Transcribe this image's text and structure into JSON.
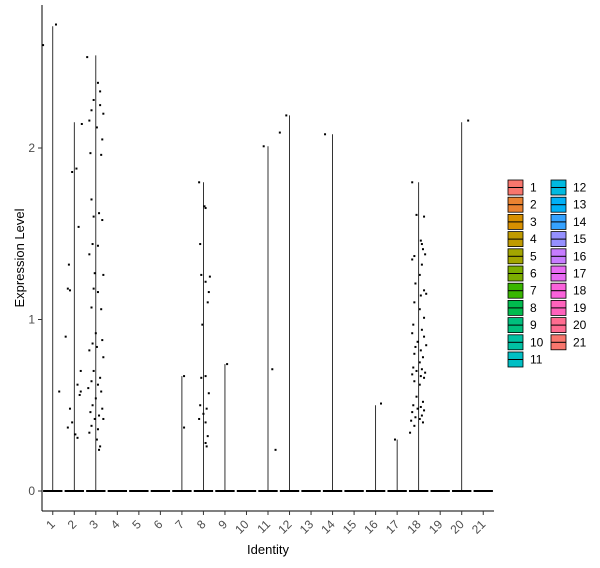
{
  "chart_data": {
    "type": "violin",
    "xlabel": "Identity",
    "ylabel": "Expression Level",
    "categories": [
      "1",
      "2",
      "3",
      "4",
      "5",
      "6",
      "7",
      "8",
      "9",
      "10",
      "11",
      "12",
      "13",
      "14",
      "15",
      "16",
      "17",
      "18",
      "19",
      "20",
      "21"
    ],
    "ylim": [
      -0.12,
      2.85
    ],
    "yticks": [
      0,
      1,
      2
    ],
    "grid": false,
    "legend_placement": "right",
    "legend": [
      "1",
      "2",
      "3",
      "4",
      "5",
      "6",
      "7",
      "8",
      "9",
      "10",
      "11",
      "12",
      "13",
      "14",
      "15",
      "16",
      "17",
      "18",
      "19",
      "20",
      "21"
    ],
    "colors": [
      "#F8766D",
      "#EA8331",
      "#D89000",
      "#C09B00",
      "#A3A500",
      "#7CAE00",
      "#39B600",
      "#00BB4E",
      "#00BF7D",
      "#00C1A3",
      "#00BFC4",
      "#00BAE0",
      "#00B0F6",
      "#35A2FF",
      "#9590FF",
      "#C77CFF",
      "#E76BF3",
      "#FA62DB",
      "#FF62BC",
      "#FF6C91",
      "#F8766D"
    ],
    "series": [
      {
        "name": "1",
        "max": 2.71,
        "points": [
          [
            -0.45,
            2.6
          ],
          [
            0.15,
            2.72
          ],
          [
            0.3,
            0.58
          ]
        ]
      },
      {
        "name": "2",
        "max": 2.15,
        "points": [
          [
            -0.3,
            1.18
          ],
          [
            -0.2,
            1.17
          ],
          [
            0.1,
            1.88
          ],
          [
            -0.1,
            1.86
          ],
          [
            0.2,
            1.54
          ],
          [
            0.3,
            0.7
          ],
          [
            -0.2,
            0.48
          ],
          [
            0.15,
            0.62
          ],
          [
            0.3,
            0.58
          ],
          [
            -0.4,
            0.9
          ],
          [
            -0.3,
            0.37
          ],
          [
            0.05,
            0.33
          ],
          [
            0.15,
            0.31
          ],
          [
            -0.1,
            0.4
          ],
          [
            0.35,
            2.14
          ],
          [
            -0.25,
            1.32
          ],
          [
            0.25,
            0.56
          ]
        ],
        "zero_line": true
      },
      {
        "name": "3",
        "max": 2.54,
        "points": [
          [
            -0.4,
            2.53
          ],
          [
            0.1,
            2.38
          ],
          [
            0.2,
            2.33
          ],
          [
            -0.1,
            2.28
          ],
          [
            0.2,
            2.25
          ],
          [
            -0.2,
            2.22
          ],
          [
            0.35,
            2.2
          ],
          [
            -0.3,
            2.16
          ],
          [
            0.05,
            2.12
          ],
          [
            0.3,
            2.05
          ],
          [
            -0.25,
            1.97
          ],
          [
            0.25,
            1.96
          ],
          [
            -0.2,
            1.7
          ],
          [
            0.15,
            1.62
          ],
          [
            -0.1,
            1.6
          ],
          [
            0.3,
            1.58
          ],
          [
            -0.15,
            1.44
          ],
          [
            0.1,
            1.43
          ],
          [
            -0.3,
            1.38
          ],
          [
            -0.05,
            1.27
          ],
          [
            0.35,
            1.26
          ],
          [
            -0.1,
            1.18
          ],
          [
            0.1,
            1.16
          ],
          [
            -0.2,
            1.07
          ],
          [
            0.25,
            1.06
          ],
          [
            0.0,
            0.92
          ],
          [
            0.3,
            0.88
          ],
          [
            -0.15,
            0.86
          ],
          [
            0.05,
            0.84
          ],
          [
            -0.3,
            0.82
          ],
          [
            0.35,
            0.78
          ],
          [
            -0.1,
            0.7
          ],
          [
            0.2,
            0.66
          ],
          [
            -0.2,
            0.64
          ],
          [
            0.1,
            0.62
          ],
          [
            -0.35,
            0.6
          ],
          [
            0.25,
            0.58
          ],
          [
            0.0,
            0.54
          ],
          [
            -0.15,
            0.5
          ],
          [
            0.3,
            0.48
          ],
          [
            -0.25,
            0.46
          ],
          [
            0.15,
            0.44
          ],
          [
            -0.05,
            0.42
          ],
          [
            0.35,
            0.42
          ],
          [
            -0.2,
            0.38
          ],
          [
            0.1,
            0.36
          ],
          [
            -0.3,
            0.34
          ],
          [
            0.05,
            0.3
          ],
          [
            0.2,
            0.26
          ],
          [
            0.15,
            0.24
          ]
        ],
        "zero_line": true
      },
      {
        "name": "4",
        "max": 0,
        "points": []
      },
      {
        "name": "5",
        "max": 0,
        "points": []
      },
      {
        "name": "6",
        "max": 0,
        "points": []
      },
      {
        "name": "7",
        "max": 0.67,
        "points": [
          [
            0.1,
            0.67
          ],
          [
            0.1,
            0.37
          ]
        ]
      },
      {
        "name": "8",
        "max": 1.8,
        "points": [
          [
            -0.2,
            1.8
          ],
          [
            0.05,
            1.66
          ],
          [
            0.1,
            1.65
          ],
          [
            -0.15,
            1.44
          ],
          [
            0.3,
            1.25
          ],
          [
            -0.1,
            1.26
          ],
          [
            0.1,
            1.22
          ],
          [
            0.25,
            1.16
          ],
          [
            0.2,
            1.1
          ],
          [
            -0.05,
            0.97
          ],
          [
            0.1,
            0.67
          ],
          [
            -0.1,
            0.66
          ],
          [
            0.25,
            0.57
          ],
          [
            -0.15,
            0.5
          ],
          [
            0.15,
            0.48
          ],
          [
            0.0,
            0.45
          ],
          [
            -0.2,
            0.42
          ],
          [
            0.1,
            0.4
          ],
          [
            0.2,
            0.32
          ],
          [
            0.1,
            0.28
          ],
          [
            0.15,
            0.26
          ]
        ],
        "zero_line": true
      },
      {
        "name": "9",
        "max": 0.74,
        "points": [
          [
            0.1,
            0.74
          ]
        ]
      },
      {
        "name": "10",
        "max": 0,
        "points": []
      },
      {
        "name": "11",
        "max": 2.01,
        "points": [
          [
            -0.2,
            2.01
          ],
          [
            0.2,
            0.71
          ],
          [
            0.35,
            0.24
          ]
        ]
      },
      {
        "name": "12",
        "max": 2.19,
        "points": [
          [
            -0.45,
            2.09
          ],
          [
            -0.15,
            2.19
          ]
        ]
      },
      {
        "name": "13",
        "max": 0,
        "points": []
      },
      {
        "name": "14",
        "max": 2.08,
        "points": [
          [
            -0.35,
            2.08
          ]
        ]
      },
      {
        "name": "15",
        "max": 0,
        "points": []
      },
      {
        "name": "16",
        "max": 0.5,
        "points": [
          [
            0.25,
            0.51
          ]
        ]
      },
      {
        "name": "17",
        "max": 0.3,
        "points": [
          [
            -0.1,
            0.3
          ]
        ]
      },
      {
        "name": "18",
        "max": 1.8,
        "points": [
          [
            -0.3,
            1.8
          ],
          [
            0.25,
            1.6
          ],
          [
            -0.1,
            1.61
          ],
          [
            0.1,
            1.46
          ],
          [
            0.15,
            1.44
          ],
          [
            0.2,
            1.41
          ],
          [
            0.3,
            1.38
          ],
          [
            -0.2,
            1.37
          ],
          [
            -0.3,
            1.35
          ],
          [
            0.15,
            1.32
          ],
          [
            0.05,
            1.26
          ],
          [
            -0.15,
            1.21
          ],
          [
            0.25,
            1.17
          ],
          [
            0.35,
            1.15
          ],
          [
            0.1,
            1.14
          ],
          [
            -0.2,
            1.1
          ],
          [
            0.05,
            1.06
          ],
          [
            0.25,
            1.01
          ],
          [
            -0.25,
            0.97
          ],
          [
            0.15,
            0.94
          ],
          [
            -0.3,
            0.92
          ],
          [
            0.25,
            0.9
          ],
          [
            -0.05,
            0.87
          ],
          [
            0.35,
            0.85
          ],
          [
            -0.15,
            0.84
          ],
          [
            0.1,
            0.82
          ],
          [
            -0.2,
            0.8
          ],
          [
            0.2,
            0.78
          ],
          [
            0.05,
            0.75
          ],
          [
            -0.25,
            0.72
          ],
          [
            0.15,
            0.71
          ],
          [
            -0.1,
            0.7
          ],
          [
            0.3,
            0.69
          ],
          [
            -0.3,
            0.68
          ],
          [
            0.1,
            0.67
          ],
          [
            0.25,
            0.66
          ],
          [
            -0.2,
            0.64
          ],
          [
            0.05,
            0.62
          ],
          [
            -0.1,
            0.55
          ],
          [
            0.2,
            0.52
          ],
          [
            -0.25,
            0.5
          ],
          [
            0.1,
            0.49
          ],
          [
            -0.05,
            0.48
          ],
          [
            0.25,
            0.47
          ],
          [
            -0.3,
            0.46
          ],
          [
            0.15,
            0.44
          ],
          [
            -0.15,
            0.43
          ],
          [
            0.05,
            0.42
          ],
          [
            -0.35,
            0.41
          ],
          [
            0.2,
            0.4
          ],
          [
            -0.2,
            0.38
          ],
          [
            -0.4,
            0.34
          ]
        ],
        "zero_line": true
      },
      {
        "name": "19",
        "max": 0,
        "points": []
      },
      {
        "name": "20",
        "max": 2.15,
        "points": [
          [
            0.3,
            2.16
          ]
        ]
      },
      {
        "name": "21",
        "max": 0,
        "points": []
      }
    ]
  }
}
